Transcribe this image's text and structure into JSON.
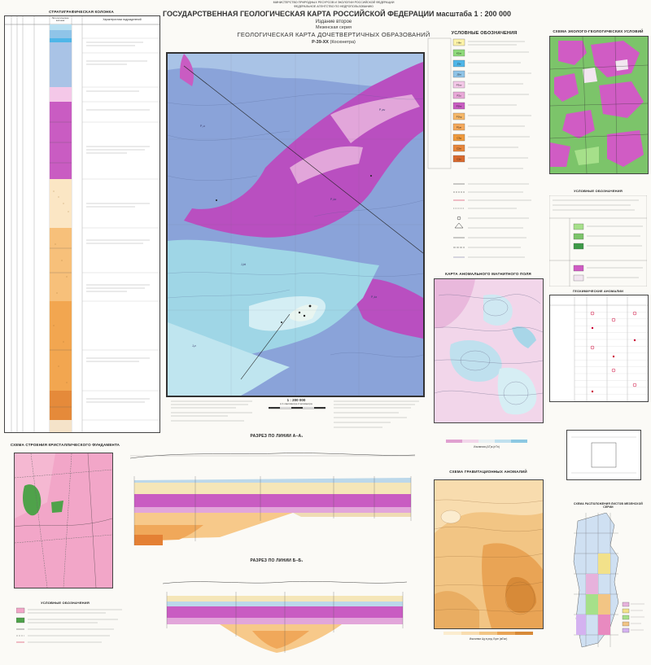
{
  "header": {
    "ministry_line1": "МИНИСТЕРСТВО ПРИРОДНЫХ РЕСУРСОВ И ЭКОЛОГИИ РОССИЙСКОЙ ФЕДЕРАЦИИ",
    "ministry_line2": "ФЕДЕРАЛЬНОЕ АГЕНТСТВО ПО НЕДРОПОЛЬЗОВАНИЮ",
    "title": "ГОСУДАРСТВЕННАЯ  ГЕОЛОГИЧЕСКАЯ  КАРТА  РОССИЙСКОЙ  ФЕДЕРАЦИИ  масштаба  1 : 200 000",
    "edition": "Издание второе",
    "series": "Мезенская серия",
    "map_title": "ГЕОЛОГИЧЕСКАЯ  КАРТА  ДОЧЕТВЕРТИЧНЫХ  ОБРАЗОВАНИЙ",
    "sheet": "P-39-XX",
    "sheet_name": "(Косюнетра)"
  },
  "strat_column": {
    "title": "СТРАТИГРАФИЧЕСКАЯ КОЛОНКА",
    "col_lithology": "Литологическая колонка",
    "col_description": "Характеристика подразделений"
  },
  "legend": {
    "title": "УСЛОВНЫЕ  ОБОЗНАЧЕНИЯ",
    "items": [
      {
        "code": "I-IIbr",
        "color": "#fdf3a8"
      },
      {
        "code": "K1kr",
        "color": "#8fdb7a"
      },
      {
        "code": "J3v",
        "color": "#4fb6e8"
      },
      {
        "code": "J2bt",
        "color": "#8fc4e8"
      },
      {
        "code": "P3sv",
        "color": "#f4c8e8"
      },
      {
        "code": "P2u",
        "color": "#e9a8d8"
      },
      {
        "code": "P2kz",
        "color": "#c95cc2"
      },
      {
        "code": "P1kg",
        "color": "#f7b868"
      },
      {
        "code": "P1ar",
        "color": "#f5a85a"
      },
      {
        "code": "C3g",
        "color": "#f09a3c"
      },
      {
        "code": "C2m",
        "color": "#e8863a"
      },
      {
        "code": "C1v",
        "color": "#d96a2e"
      }
    ]
  },
  "ecology_scheme": {
    "title": "СХЕМА ЭКОЛОГО-ГЕОЛОГИЧЕСКИХ УСЛОВИЙ"
  },
  "ecology_legend": {
    "title": "УСЛОВНЫЕ  ОБОЗНАЧЕНИЯ"
  },
  "geochem_table": {
    "title": "ГЕОХИМИЧЕСКИЕ АНОМАЛИИ"
  },
  "magnetic_field": {
    "title": "КАРТА АНОМАЛЬНОГО МАГНИТНОГО ПОЛЯ",
    "scale_caption": "Изолинии (ΔT)а (нТл)"
  },
  "gravity": {
    "title": "СХЕМА ГРАВИТАЦИОННЫХ АНОМАЛИЙ",
    "scale_caption": "Изолинии Δg в ред. Буге (мГал)"
  },
  "crystalline": {
    "title": "СХЕМА СТРОЕНИЯ КРИСТАЛЛИЧЕСКОГО ФУНДАМЕНТА",
    "legend_title": "УСЛОВНЫЕ  ОБОЗНАЧЕНИЯ"
  },
  "section1": {
    "title": "РАЗРЕЗ ПО ЛИНИИ  А–А₁"
  },
  "section2": {
    "title": "РАЗРЕЗ ПО ЛИНИИ  Б–Б₁"
  },
  "main_map": {
    "scale": "1 : 200 000",
    "scale_note": "в 1 сантиметре 2 километра"
  },
  "location_scheme": {
    "title": "СХЕМА РАСПОЛОЖЕНИЯ ЛИСТОВ МЕЗЕНСКОЙ СЕРИИ"
  },
  "colors": {
    "paper": "#fbfaf6",
    "blue_deep": "#7f95d6",
    "blue_light": "#a9c3e6",
    "cyan": "#9fd6e6",
    "magenta": "#b94fc0",
    "pink_light": "#e2a6da"
  }
}
